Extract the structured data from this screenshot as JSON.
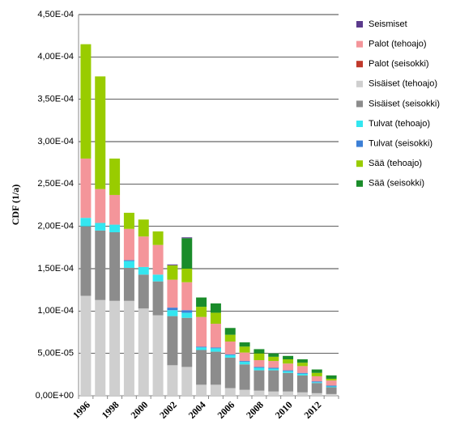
{
  "chart_data": {
    "type": "stacked_bar",
    "ylabel": "CDF (1/a)",
    "categories": [
      "1996",
      null,
      "1998",
      null,
      "2000",
      null,
      "2002",
      null,
      "2004",
      null,
      "2006",
      null,
      "2008",
      null,
      "2010",
      null,
      "2012",
      null
    ],
    "ylim": [
      0,
      0.00045
    ],
    "yticks": [
      {
        "value": 0,
        "label": "0,00E+00"
      },
      {
        "value": 5e-05,
        "label": "5,00E-05"
      },
      {
        "value": 0.0001,
        "label": "1,00E-04"
      },
      {
        "value": 0.00015,
        "label": "1,50E-04"
      },
      {
        "value": 0.0002,
        "label": "2,00E-04"
      },
      {
        "value": 0.00025,
        "label": "2,50E-04"
      },
      {
        "value": 0.0003,
        "label": "3,00E-04"
      },
      {
        "value": 0.00035,
        "label": "3,50E-04"
      },
      {
        "value": 0.0004,
        "label": "4,00E-04"
      },
      {
        "value": 0.00045,
        "label": "4,50E-04"
      }
    ],
    "grid": true,
    "legend": "right",
    "series": [
      {
        "name": "Seismiset",
        "color": "#5b3a8c",
        "values": [
          0,
          0,
          0,
          0,
          0,
          0,
          1e-06,
          1e-06,
          0,
          0,
          0,
          0,
          0,
          0,
          0,
          0,
          0,
          0
        ]
      },
      {
        "name": "Palot (tehoajo)",
        "color": "#f4959a",
        "values": [
          7e-05,
          4e-05,
          3.5e-05,
          3.7e-05,
          3.6e-05,
          3.5e-05,
          3.3e-05,
          3.3e-05,
          3.5e-05,
          2.8e-05,
          1.5e-05,
          1e-05,
          8e-06,
          8e-06,
          8e-06,
          8e-06,
          6e-06,
          6e-06
        ]
      },
      {
        "name": "Palot (seisokki)",
        "color": "#c0392b",
        "values": [
          0,
          0,
          0,
          0,
          0,
          0,
          0,
          0,
          0,
          0,
          0,
          0,
          0,
          0,
          0,
          0,
          0,
          0
        ]
      },
      {
        "name": "Sisäiset (tehoajo)",
        "color": "#cfcfcf",
        "values": [
          0.000118,
          0.000113,
          0.000112,
          0.000112,
          0.000103,
          9.5e-05,
          3.6e-05,
          3.4e-05,
          1.3e-05,
          1.3e-05,
          9e-06,
          7e-06,
          6e-06,
          5e-06,
          5e-06,
          4e-06,
          3e-06,
          2e-06
        ]
      },
      {
        "name": "Sisäiset (seisokki)",
        "color": "#8c8c8c",
        "values": [
          8.2e-05,
          8.2e-05,
          8.1e-05,
          3.9e-05,
          4e-05,
          4e-05,
          5.8e-05,
          5.8e-05,
          4.1e-05,
          3.9e-05,
          3.6e-05,
          3e-05,
          2.4e-05,
          2.5e-05,
          2.2e-05,
          2e-05,
          1.2e-05,
          8e-06
        ]
      },
      {
        "name": "Tulvat (tehoajo)",
        "color": "#33e6f0",
        "values": [
          1e-05,
          9e-06,
          9e-06,
          8e-06,
          9e-06,
          8e-06,
          7e-06,
          6e-06,
          3e-06,
          4e-06,
          3e-06,
          3e-06,
          3e-06,
          2e-06,
          2e-06,
          2e-06,
          1e-06,
          1e-06
        ]
      },
      {
        "name": "Tulvat (seisokki)",
        "color": "#3c7fd6",
        "values": [
          0,
          0,
          0,
          1e-06,
          0,
          0,
          3e-06,
          3e-06,
          1e-06,
          1e-06,
          1e-06,
          1e-06,
          1e-06,
          1e-06,
          1e-06,
          1e-06,
          1e-06,
          1e-06
        ]
      },
      {
        "name": "Sää (tehoajo)",
        "color": "#99cc00",
        "values": [
          0.000135,
          0.000133,
          4.3e-05,
          1.9e-05,
          2e-05,
          1.6e-05,
          1.7e-05,
          1.6e-05,
          1.2e-05,
          1.3e-05,
          8e-06,
          7e-06,
          8e-06,
          5e-06,
          5e-06,
          4e-06,
          4e-06,
          2e-06
        ]
      },
      {
        "name": "Sää (seisokki)",
        "color": "#1a8c2a",
        "values": [
          0,
          0,
          0,
          0,
          0,
          0,
          0,
          3.6e-05,
          1.1e-05,
          1.1e-05,
          8e-06,
          5e-06,
          5e-06,
          4e-06,
          4e-06,
          4e-06,
          4e-06,
          4e-06
        ]
      }
    ]
  }
}
